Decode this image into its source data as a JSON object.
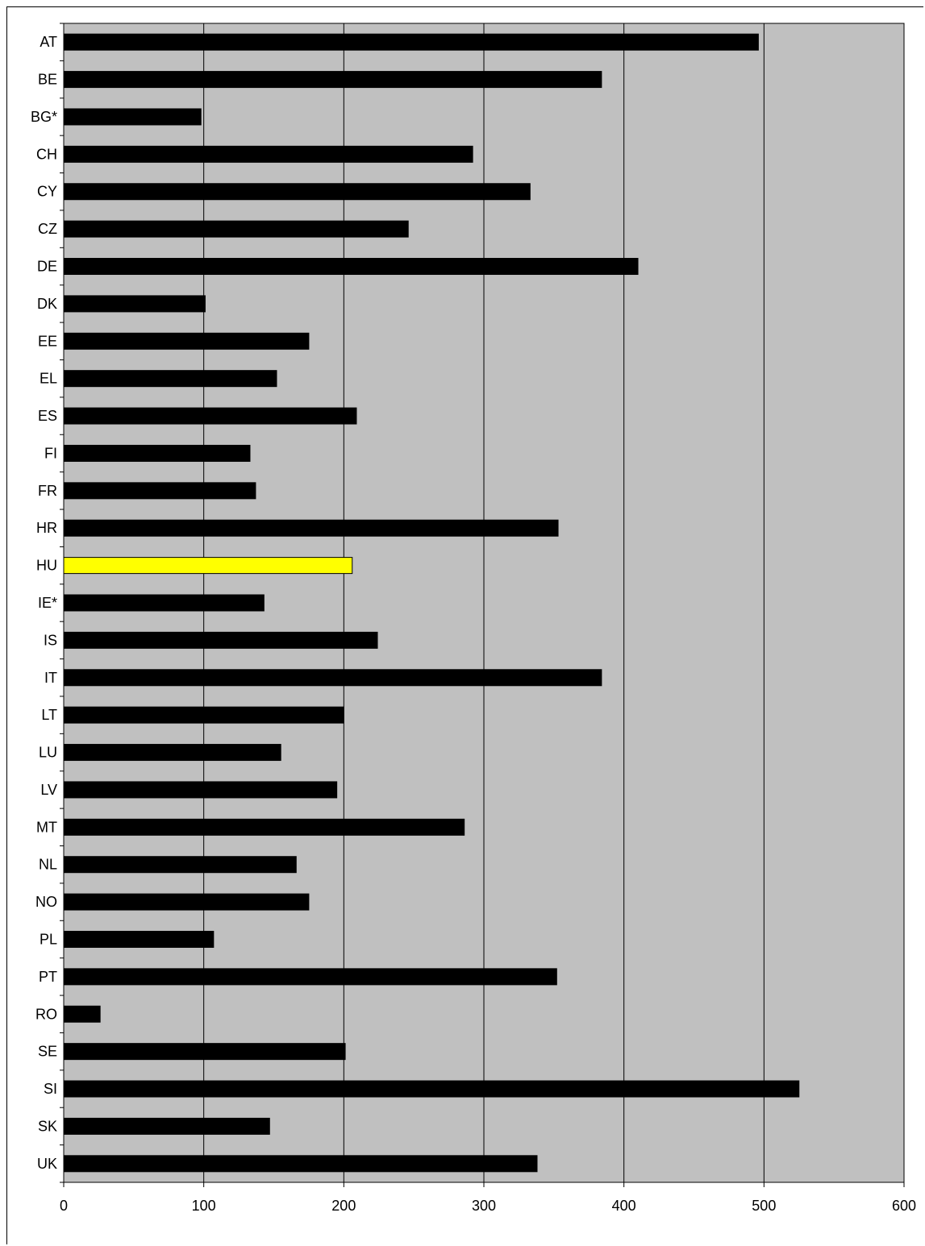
{
  "chart_data": {
    "type": "bar",
    "orientation": "horizontal",
    "categories": [
      "AT",
      "BE",
      "BG*",
      "CH",
      "CY",
      "CZ",
      "DE",
      "DK",
      "EE",
      "EL",
      "ES",
      "FI",
      "FR",
      "HR",
      "HU",
      "IE*",
      "IS",
      "IT",
      "LT",
      "LU",
      "LV",
      "MT",
      "NL",
      "NO",
      "PL",
      "PT",
      "RO",
      "SE",
      "SI",
      "SK",
      "UK"
    ],
    "values": [
      496,
      384,
      98,
      292,
      333,
      246,
      410,
      101,
      175,
      152,
      209,
      133,
      137,
      353,
      206,
      143,
      224,
      384,
      200,
      155,
      195,
      286,
      166,
      175,
      107,
      352,
      26,
      201,
      525,
      147,
      338
    ],
    "highlight_category": "HU",
    "bar_color": "#000000",
    "highlight_color": "#ffff00",
    "plot_background": "#c0c0c0",
    "title": "",
    "xlabel": "",
    "ylabel": "",
    "xlim": [
      0,
      600
    ],
    "xticks": [
      0,
      100,
      200,
      300,
      400,
      500,
      600
    ],
    "grid": "vertical",
    "legend": "none"
  }
}
